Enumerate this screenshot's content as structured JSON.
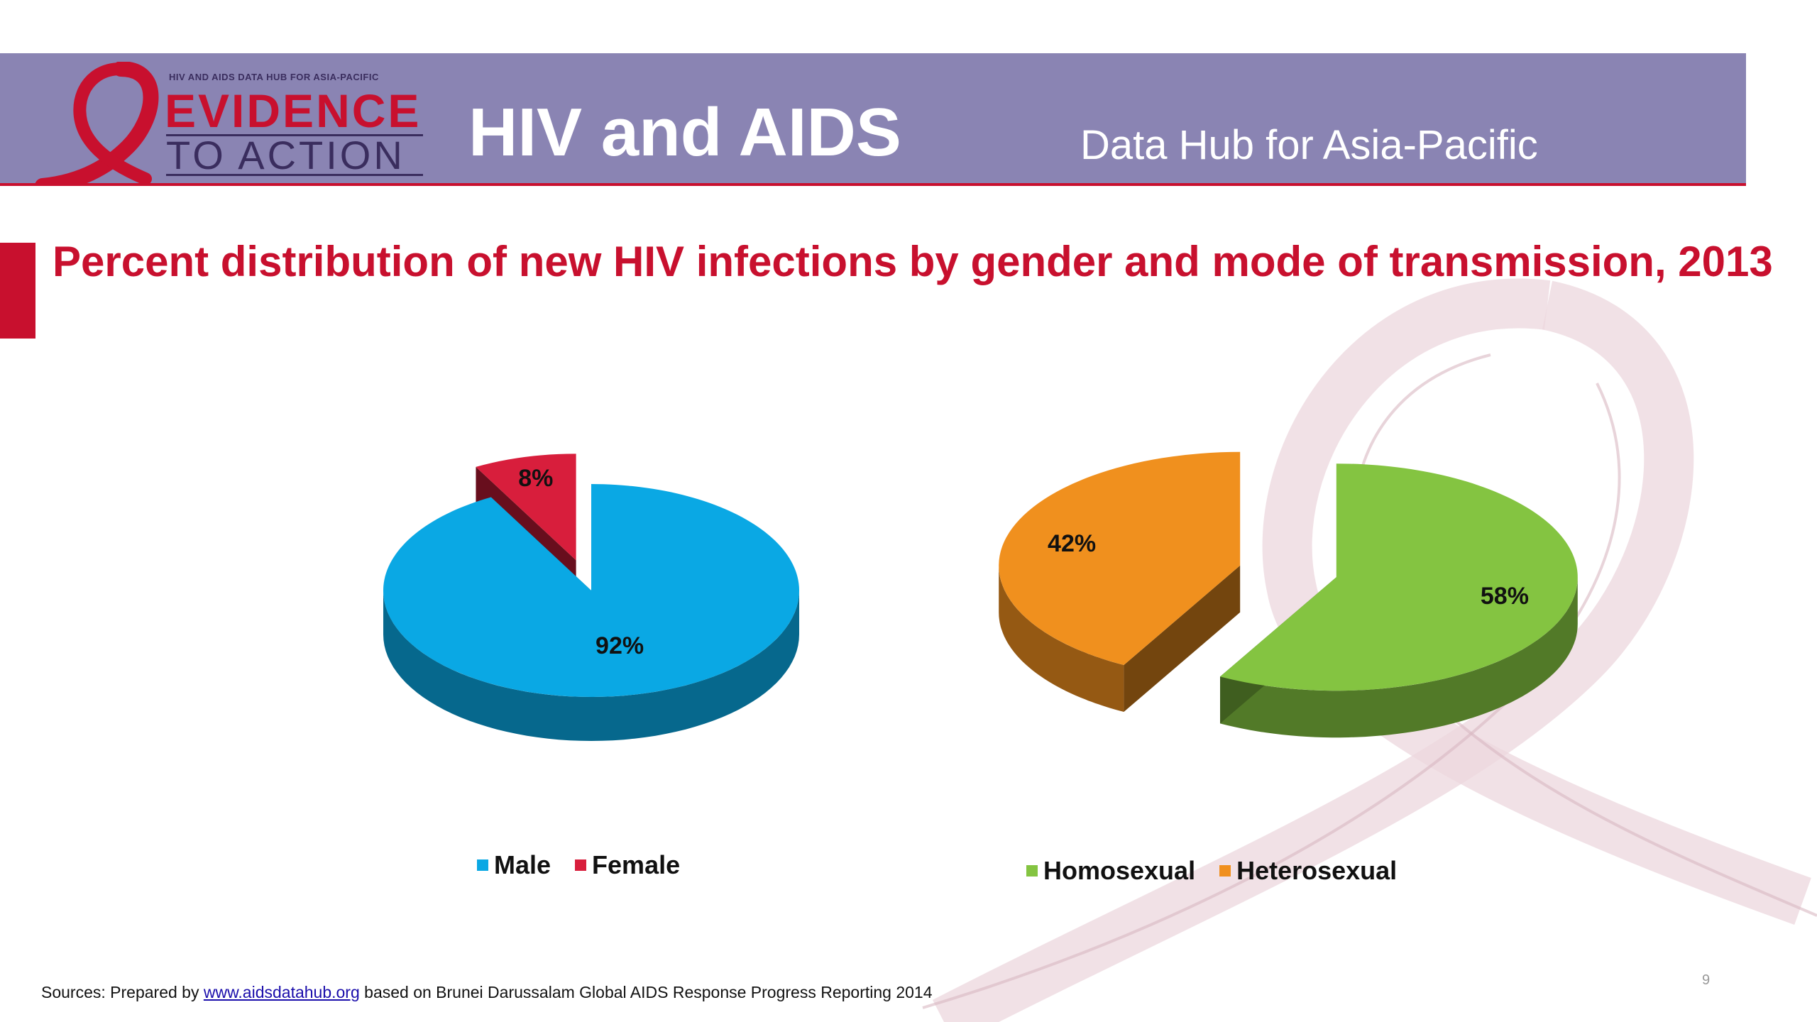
{
  "header": {
    "logo_tagline": "HIV AND AIDS DATA HUB FOR ASIA-PACIFIC",
    "logo_line1": "EVIDENCE",
    "logo_line2": "TO ACTION",
    "title": "HIV and AIDS",
    "subtitle": "Data Hub for Asia-Pacific",
    "colors": {
      "band": "#8a84b3",
      "accent": "#c8102e"
    }
  },
  "slide": {
    "title": "Percent distribution of new HIV infections by gender and mode of transmission, 2013",
    "page_number": "9"
  },
  "chart_data": [
    {
      "type": "pie",
      "style": "3d-exploded",
      "categories": [
        "Male",
        "Female"
      ],
      "values": [
        92,
        8
      ],
      "data_labels": [
        "92%",
        "8%"
      ],
      "colors": [
        "#0aa8e4",
        "#d81e3c"
      ],
      "legend": [
        "Male",
        "Female"
      ],
      "legend_position": "bottom"
    },
    {
      "type": "pie",
      "style": "3d-exploded",
      "categories": [
        "Homosexual",
        "Heterosexual"
      ],
      "values": [
        58,
        42
      ],
      "data_labels": [
        "58%",
        "42%"
      ],
      "colors": [
        "#84c441",
        "#f0901e"
      ],
      "legend": [
        "Homosexual",
        "Heterosexual"
      ],
      "legend_position": "bottom"
    }
  ],
  "footer": {
    "source_prefix": "Sources: Prepared by ",
    "source_link": "www.aidsdatahub.org",
    "source_suffix": " based on Brunei Darussalam  Global AIDS Response Progress Reporting 2014"
  }
}
